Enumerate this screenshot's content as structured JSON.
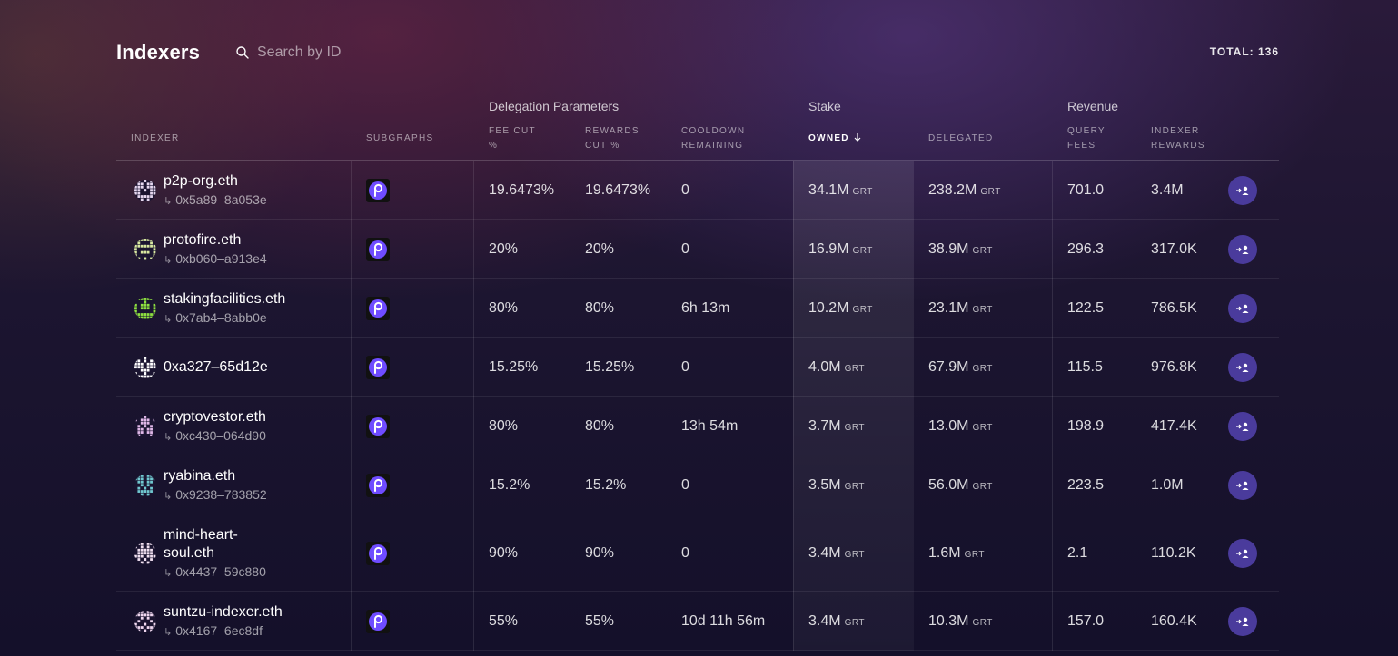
{
  "header": {
    "title": "Indexers",
    "search_placeholder": "Search by ID",
    "total": "TOTAL: 136"
  },
  "groups": {
    "delegation": "Delegation Parameters",
    "stake": "Stake",
    "revenue": "Revenue"
  },
  "columns": {
    "indexer": "INDEXER",
    "subgraphs": "SUBGRAPHS",
    "fee_cut_1": "FEE CUT",
    "fee_cut_2": "%",
    "rewards_cut_1": "REWARDS",
    "rewards_cut_2": "CUT %",
    "cooldown_1": "COOLDOWN",
    "cooldown_2": "REMAINING",
    "owned": "OWNED",
    "delegated": "DELEGATED",
    "query_fees_1": "QUERY",
    "query_fees_2": "FEES",
    "indexer_rewards_1": "INDEXER",
    "indexer_rewards_2": "REWARDS"
  },
  "unit": "GRT",
  "rows": [
    {
      "name": "p2p-org.eth",
      "address": "0x5a89–8a053e",
      "fee_cut": "19.6473%",
      "rewards_cut": "19.6473%",
      "cooldown": "0",
      "owned": "34.1M",
      "delegated": "238.2M",
      "query_fees": "701.0",
      "indexer_rewards": "3.4M",
      "avatar_color": "#e6d8f0"
    },
    {
      "name": "protofire.eth",
      "address": "0xb060–a913e4",
      "fee_cut": "20%",
      "rewards_cut": "20%",
      "cooldown": "0",
      "owned": "16.9M",
      "delegated": "38.9M",
      "query_fees": "296.3",
      "indexer_rewards": "317.0K",
      "avatar_color": "#d8e8a0"
    },
    {
      "name": "stakingfacilities.eth",
      "address": "0x7ab4–8abb0e",
      "fee_cut": "80%",
      "rewards_cut": "80%",
      "cooldown": "6h 13m",
      "owned": "10.2M",
      "delegated": "23.1M",
      "query_fees": "122.5",
      "indexer_rewards": "786.5K",
      "avatar_color": "#8ee040"
    },
    {
      "name": "0xa327–65d12e",
      "address": "",
      "fee_cut": "15.25%",
      "rewards_cut": "15.25%",
      "cooldown": "0",
      "owned": "4.0M",
      "delegated": "67.9M",
      "query_fees": "115.5",
      "indexer_rewards": "976.8K",
      "avatar_color": "#ffffff"
    },
    {
      "name": "cryptovestor.eth",
      "address": "0xc430–064d90",
      "fee_cut": "80%",
      "rewards_cut": "80%",
      "cooldown": "13h 54m",
      "owned": "3.7M",
      "delegated": "13.0M",
      "query_fees": "198.9",
      "indexer_rewards": "417.4K",
      "avatar_color": "#e0b8e8"
    },
    {
      "name": "ryabina.eth",
      "address": "0x9238–783852",
      "fee_cut": "15.2%",
      "rewards_cut": "15.2%",
      "cooldown": "0",
      "owned": "3.5M",
      "delegated": "56.0M",
      "query_fees": "223.5",
      "indexer_rewards": "1.0M",
      "avatar_color": "#70c8d0"
    },
    {
      "name": "mind-heart-soul.eth",
      "name_line1": "mind-heart-",
      "name_line2": "soul.eth",
      "address": "0x4437–59c880",
      "fee_cut": "90%",
      "rewards_cut": "90%",
      "cooldown": "0",
      "owned": "3.4M",
      "delegated": "1.6M",
      "query_fees": "2.1",
      "indexer_rewards": "110.2K",
      "avatar_color": "#f0e0f0"
    },
    {
      "name": "suntzu-indexer.eth",
      "address": "0x4167–6ec8df",
      "fee_cut": "55%",
      "rewards_cut": "55%",
      "cooldown": "10d 11h 56m",
      "owned": "3.4M",
      "delegated": "10.3M",
      "query_fees": "157.0",
      "indexer_rewards": "160.4K",
      "avatar_color": "#f0d8f0"
    }
  ],
  "icons": {
    "search": "search-icon",
    "sort": "arrow-down-icon",
    "subgraph": "subgraph-logo-icon",
    "delegate": "delegate-icon"
  },
  "colors": {
    "accent_button": "#4a3b9c",
    "subgraph_logo": "#6f4cff"
  }
}
